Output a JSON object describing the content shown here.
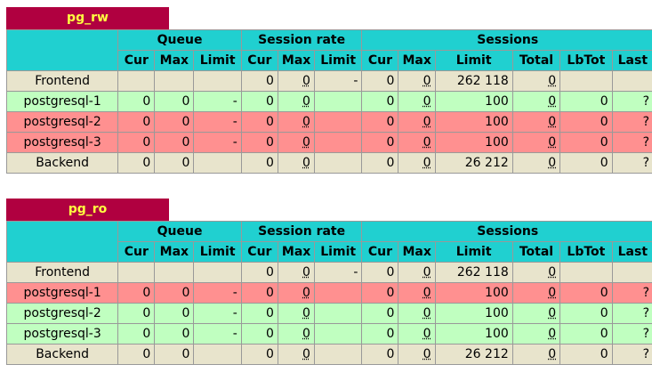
{
  "colors": {
    "proxy_name_bg": "#b00040",
    "proxy_name_fg": "#ffff40",
    "header_bg": "#20d0d0",
    "frontend_bg": "#e8e4cc",
    "up_bg": "#c0ffc0",
    "down_bg": "#ff9090"
  },
  "headers": {
    "queue": "Queue",
    "session_rate": "Session rate",
    "sessions": "Sessions",
    "sub": [
      "Cur",
      "Max",
      "Limit",
      "Cur",
      "Max",
      "Limit",
      "Cur",
      "Max",
      "Limit",
      "Total",
      "LbTot",
      "Last"
    ]
  },
  "proxies": [
    {
      "name": "pg_rw",
      "rows": [
        {
          "kind": "frontend",
          "cells": [
            "Frontend",
            "",
            "",
            "",
            "0",
            "0",
            "-",
            "0",
            "0",
            "262 118",
            "0",
            "",
            ""
          ]
        },
        {
          "kind": "up",
          "cells": [
            "postgresql-1",
            "0",
            "0",
            "-",
            "0",
            "0",
            "",
            "0",
            "0",
            "100",
            "0",
            "0",
            "?"
          ]
        },
        {
          "kind": "down",
          "cells": [
            "postgresql-2",
            "0",
            "0",
            "-",
            "0",
            "0",
            "",
            "0",
            "0",
            "100",
            "0",
            "0",
            "?"
          ]
        },
        {
          "kind": "down",
          "cells": [
            "postgresql-3",
            "0",
            "0",
            "-",
            "0",
            "0",
            "",
            "0",
            "0",
            "100",
            "0",
            "0",
            "?"
          ]
        },
        {
          "kind": "backend",
          "cells": [
            "Backend",
            "0",
            "0",
            "",
            "0",
            "0",
            "",
            "0",
            "0",
            "26 212",
            "0",
            "0",
            "?"
          ]
        }
      ]
    },
    {
      "name": "pg_ro",
      "rows": [
        {
          "kind": "frontend",
          "cells": [
            "Frontend",
            "",
            "",
            "",
            "0",
            "0",
            "-",
            "0",
            "0",
            "262 118",
            "0",
            "",
            ""
          ]
        },
        {
          "kind": "down",
          "cells": [
            "postgresql-1",
            "0",
            "0",
            "-",
            "0",
            "0",
            "",
            "0",
            "0",
            "100",
            "0",
            "0",
            "?"
          ]
        },
        {
          "kind": "up",
          "cells": [
            "postgresql-2",
            "0",
            "0",
            "-",
            "0",
            "0",
            "",
            "0",
            "0",
            "100",
            "0",
            "0",
            "?"
          ]
        },
        {
          "kind": "up",
          "cells": [
            "postgresql-3",
            "0",
            "0",
            "-",
            "0",
            "0",
            "",
            "0",
            "0",
            "100",
            "0",
            "0",
            "?"
          ]
        },
        {
          "kind": "backend",
          "cells": [
            "Backend",
            "0",
            "0",
            "",
            "0",
            "0",
            "",
            "0",
            "0",
            "26 212",
            "0",
            "0",
            "?"
          ]
        }
      ]
    }
  ]
}
